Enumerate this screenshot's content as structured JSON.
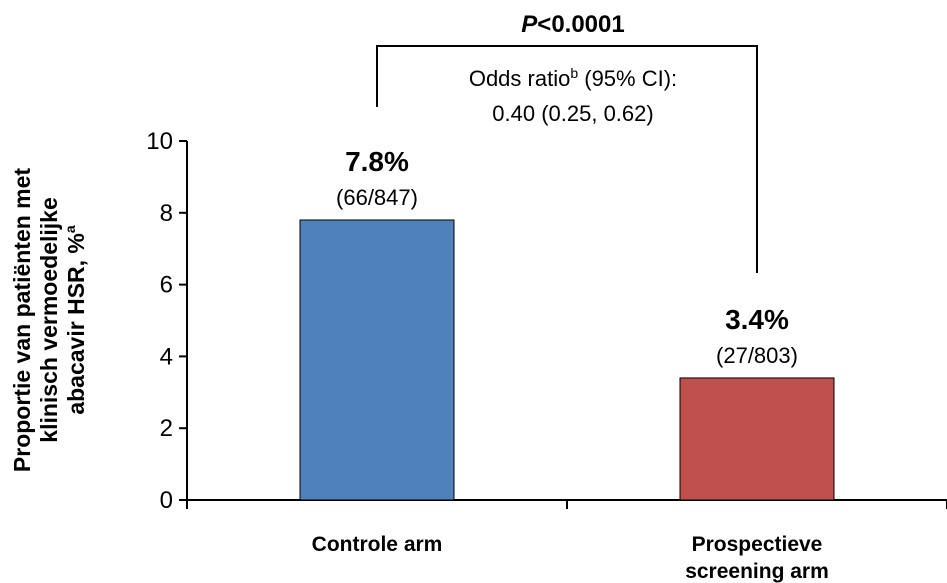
{
  "chart_data": {
    "type": "bar",
    "categories": [
      "Controle arm",
      "Prospectieve screening arm"
    ],
    "category_lines": [
      [
        "Controle arm"
      ],
      [
        "Prospectieve",
        "screening arm"
      ]
    ],
    "values": [
      7.8,
      3.4
    ],
    "colors": [
      "#4F81BD",
      "#C0504D"
    ],
    "value_labels": [
      "7.8%",
      "3.4%"
    ],
    "fraction_labels": [
      "(66/847)",
      "(27/803)"
    ],
    "ylabel_lines": [
      "Proportie van patiënten met",
      "klinisch vermoedelijke",
      "abacavir HSR, %"
    ],
    "ylabel_superscript": "a",
    "ylim": [
      0,
      10
    ],
    "yticks": [
      0,
      2,
      4,
      6,
      8,
      10
    ],
    "grid": false,
    "significance": {
      "p_italic": "P",
      "p_rest": "<0.0001",
      "or_text": "Odds ratio",
      "or_superscript": "b",
      "or_text_after": " (95% CI):",
      "or_values": "0.40 (0.25, 0.62)"
    }
  }
}
